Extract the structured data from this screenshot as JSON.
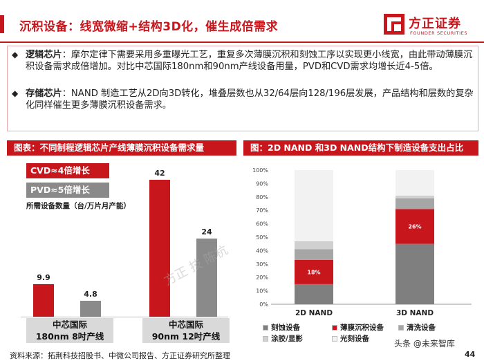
{
  "header": {
    "title": "沉积设备：线宽微缩+结构3D化，催生成倍需求",
    "logo_cn": "方正证券",
    "logo_en": "FOUNDER SECURITIES",
    "accent": "#c8161d"
  },
  "bullets": [
    {
      "keyword": "逻辑芯片",
      "text": "：摩尔定律下需要采用多重曝光工艺，重复多次薄膜沉积和刻蚀工序以实现更小线宽，由此带动薄膜沉积设备需求成倍增加。对比中芯国际180nm和90nm产线设备用量，PVD和CVD需求均增长近4-5倍。"
    },
    {
      "keyword": "存储芯片",
      "text": "：NAND 制造工艺从2D向3D转化，堆叠层数也从32/64层向128/196层发展，产品结构和层数的复杂化同样催生更多薄膜沉积设备需求。"
    }
  ],
  "left_section": {
    "title": "图表：不同制程逻辑芯片产线薄膜沉积设备需求量",
    "tag_cvd": "CVD≈4倍增长",
    "tag_pvd": "PVD≈5倍增长",
    "unit": "所需设备数量（台/万片月产能）",
    "cat1_line1": "中芯国际",
    "cat1_line2": "180nm 8吋产线",
    "cat2_line1": "中芯国际",
    "cat2_line2": "90nm 12吋产线"
  },
  "right_section": {
    "title": "图：2D NAND 和3D NAND结构下制造设备支出占比"
  },
  "chart_data": [
    {
      "type": "bar",
      "categories": [
        "中芯国际 180nm 8吋产线",
        "中芯国际 90nm 12吋产线"
      ],
      "series": [
        {
          "name": "CVD",
          "values": [
            9.9,
            42
          ],
          "color": "#c8161d"
        },
        {
          "name": "PVD",
          "values": [
            4.8,
            24
          ],
          "color": "#8a8a8a"
        }
      ],
      "ylim": [
        0,
        45
      ],
      "data_labels": [
        "9.9",
        "4.8",
        "42",
        "24"
      ]
    },
    {
      "type": "bar",
      "stacked": true,
      "categories": [
        "2D NAND",
        "3D NAND"
      ],
      "yticks": [
        "0%",
        "10%",
        "20%",
        "30%",
        "40%",
        "50%",
        "60%",
        "70%",
        "80%",
        "90%",
        "100%"
      ],
      "ylim": [
        0,
        100
      ],
      "series": [
        {
          "name": "刻蚀设备",
          "values": [
            15,
            45
          ],
          "color": "#7f7f7f"
        },
        {
          "name": "薄膜沉积设备",
          "values": [
            18,
            26
          ],
          "color": "#c8161d"
        },
        {
          "name": "清洗设备",
          "values": [
            8,
            8
          ],
          "color": "#a6a6a6"
        },
        {
          "name": "涂胶/显影",
          "values": [
            6,
            2
          ],
          "color": "#d0d0d0"
        },
        {
          "name": "光刻设备",
          "values": [
            53,
            19
          ],
          "color": "#f2f2f2"
        }
      ],
      "segment_labels": [
        "18%",
        "26%"
      ],
      "legend_position": "bottom"
    }
  ],
  "watermarks": {
    "diagonal": "方正 技 陈杭",
    "corner": "头条 @未来智库"
  },
  "footer": {
    "source": "资料来源：拓荆科技招股书、中微公司报告、方正证券研究所整理",
    "page": "44"
  }
}
